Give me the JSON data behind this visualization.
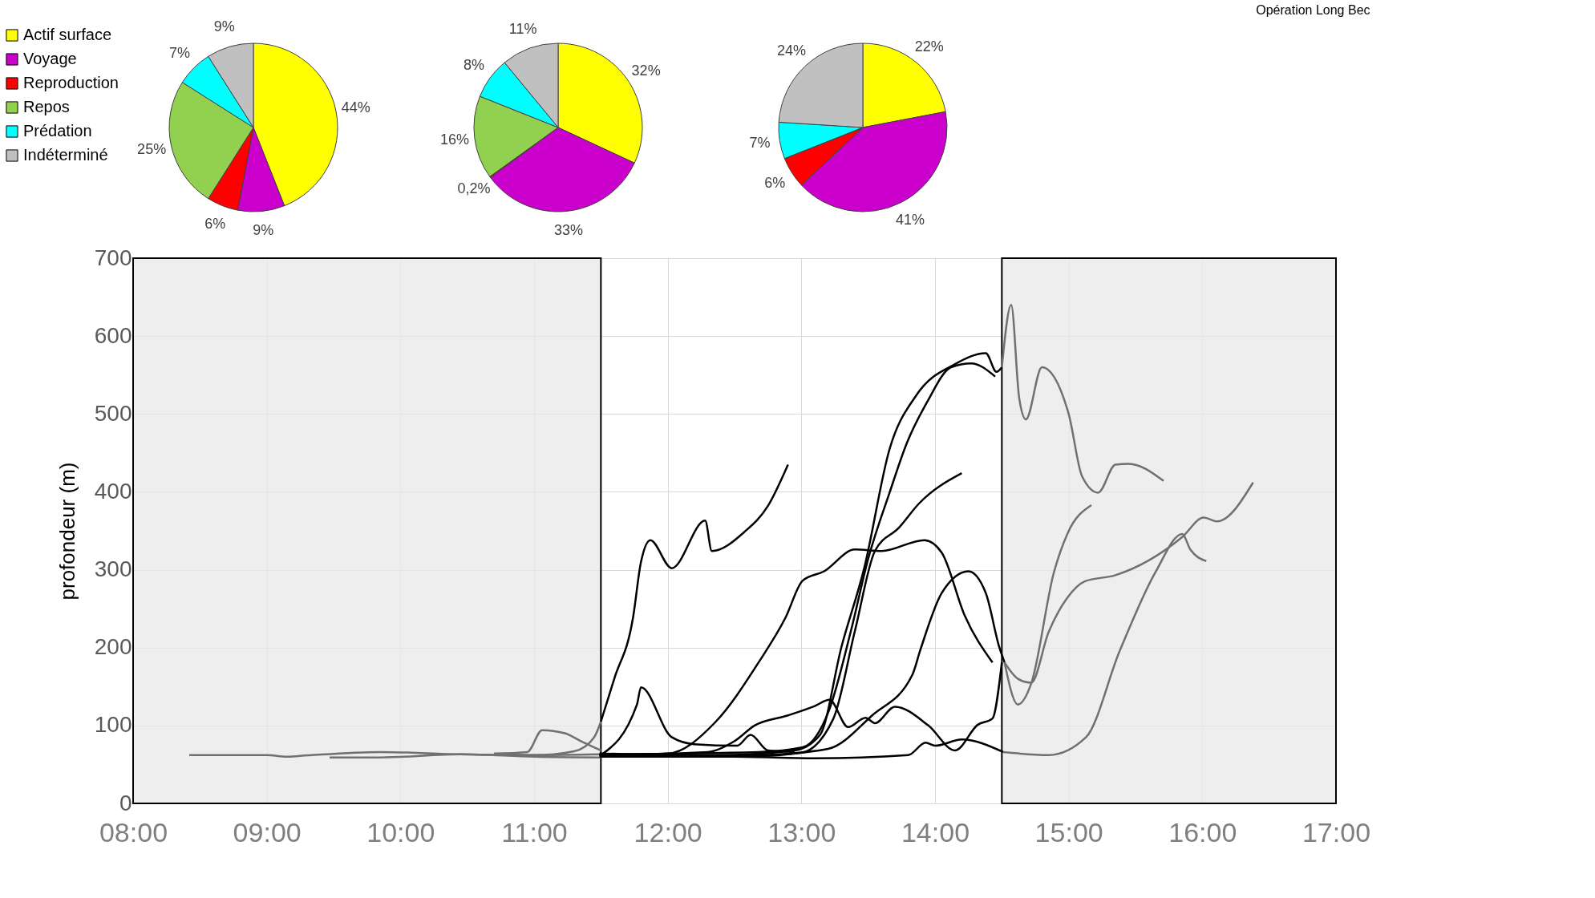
{
  "chart_data": [
    {
      "type": "line",
      "ylabel": "profondeur (m)",
      "xlim": [
        8,
        17
      ],
      "ylim": [
        0,
        700
      ],
      "xticks": [
        {
          "value": 8,
          "label": "08:00"
        },
        {
          "value": 9,
          "label": "09:00"
        },
        {
          "value": 10,
          "label": "10:00"
        },
        {
          "value": 11,
          "label": "11:00"
        },
        {
          "value": 12,
          "label": "12:00"
        },
        {
          "value": 13,
          "label": "13:00"
        },
        {
          "value": 14,
          "label": "14:00"
        },
        {
          "value": 15,
          "label": "15:00"
        },
        {
          "value": 16,
          "label": "16:00"
        },
        {
          "value": 17,
          "label": "17:00"
        }
      ],
      "yticks": [
        0,
        100,
        200,
        300,
        400,
        500,
        600,
        700
      ],
      "grid": true,
      "marker": "none",
      "line_style": "solid",
      "bands": [
        {
          "axis": "x",
          "from": 8,
          "to": 11.5,
          "color": "#e8e8e8"
        },
        {
          "axis": "x",
          "from": 14.5,
          "to": 17,
          "color": "#e8e8e8"
        }
      ],
      "annotations": [
        {
          "text": "Opération Long Bec"
        }
      ],
      "series": [
        {
          "color": "#707070",
          "x": [
            8.42,
            9.0,
            9.15,
            9.25,
            9.85,
            10.45,
            11.0,
            11.5
          ],
          "values": [
            62,
            62,
            60,
            61,
            66,
            63,
            62,
            63
          ]
        },
        {
          "color": "#707070",
          "x": [
            9.47,
            9.85,
            10.45,
            11.0,
            11.5
          ],
          "values": [
            59,
            59,
            63,
            60,
            59
          ]
        },
        {
          "color": "#707070",
          "x": [
            10.7,
            10.95,
            11.06,
            11.23,
            11.35,
            11.5
          ],
          "values": [
            64,
            66,
            94,
            90,
            80,
            68
          ]
        },
        {
          "color": "#707070",
          "x": [
            10.8,
            11.0,
            11.3,
            11.45,
            11.5
          ],
          "values": [
            63,
            62,
            67,
            85,
            105
          ]
        },
        {
          "color": "#000000",
          "x": [
            11.5,
            11.6,
            11.74,
            11.8,
            11.87,
            12.03,
            12.28,
            12.33,
            12.57,
            12.75,
            12.9
          ],
          "values": [
            105,
            160,
            238,
            310,
            338,
            302,
            363,
            324,
            348,
            382,
            435
          ]
        },
        {
          "color": "#000000",
          "x": [
            11.49,
            12.36,
            12.95,
            13.14,
            13.3,
            13.47,
            13.66,
            13.86,
            14.15,
            14.38,
            14.46,
            14.5
          ],
          "values": [
            64,
            62,
            68,
            88,
            201,
            302,
            455,
            524,
            564,
            578,
            554,
            560
          ]
        },
        {
          "color": "#707070",
          "x": [
            14.5,
            14.57,
            14.63,
            14.68,
            14.8,
            15.0,
            15.1,
            15.22,
            15.35,
            15.45,
            15.71
          ],
          "values": [
            560,
            640,
            520,
            493,
            560,
            500,
            420,
            399,
            435,
            436,
            414
          ]
        },
        {
          "color": "#000000",
          "x": [
            11.49,
            12.68,
            13.01,
            13.21,
            13.37,
            13.5,
            13.66,
            13.79,
            13.94,
            14.12,
            14.27,
            14.45
          ],
          "values": [
            63,
            66,
            72,
            121,
            221,
            314,
            399,
            463,
            515,
            560,
            565,
            548
          ]
        },
        {
          "color": "#000000",
          "x": [
            11.49,
            12.68,
            13.0,
            13.24,
            13.4,
            13.55,
            13.73,
            13.88,
            14.2
          ],
          "values": [
            62,
            61,
            65,
            109,
            221,
            324,
            354,
            385,
            424
          ]
        },
        {
          "color": "#000000",
          "x": [
            11.49,
            12.0,
            12.36,
            12.68,
            12.88,
            13.01,
            13.17,
            13.4,
            13.6,
            13.92,
            14.05,
            14.22,
            14.43
          ],
          "values": [
            62,
            64,
            105,
            181,
            238,
            286,
            298,
            326,
            324,
            338,
            322,
            242,
            181
          ]
        },
        {
          "color": "#000000",
          "x": [
            11.49,
            12.68,
            13.2,
            13.53,
            13.83,
            13.89,
            14.05,
            14.25,
            14.38,
            14.48,
            14.52
          ],
          "values": [
            61,
            62,
            70,
            113,
            165,
            197,
            270,
            298,
            270,
            201,
            181
          ]
        },
        {
          "color": "#707070",
          "x": [
            14.52,
            14.62,
            14.72,
            14.89,
            14.99,
            15.17
          ],
          "values": [
            181,
            127,
            154,
            297,
            346,
            383
          ]
        },
        {
          "color": "#707070",
          "x": [
            14.52,
            14.62,
            14.72,
            14.85,
            14.99,
            15.12,
            15.35,
            15.85,
            16.01,
            16.11,
            16.38
          ],
          "values": [
            181,
            160,
            155,
            220,
            264,
            285,
            293,
            342,
            367,
            362,
            412
          ]
        },
        {
          "color": "#000000",
          "x": [
            11.5,
            11.77,
            11.8,
            12.03,
            12.2,
            12.52,
            12.62,
            12.75,
            12.95
          ],
          "values": [
            62,
            127,
            149,
            85,
            76,
            74,
            88,
            68,
            66
          ]
        },
        {
          "color": "#000000",
          "x": [
            11.49,
            12.3,
            12.5,
            12.65,
            12.9,
            13.1,
            13.21,
            13.35,
            13.48,
            13.55,
            13.7,
            13.95,
            14.15,
            14.32,
            14.43,
            14.5
          ],
          "values": [
            62,
            66,
            80,
            100,
            113,
            125,
            133,
            98,
            110,
            103,
            124,
            100,
            68,
            101,
            109,
            181
          ]
        },
        {
          "color": "#000000",
          "x": [
            11.49,
            12.5,
            13.1,
            13.8,
            13.93,
            14.0,
            14.2,
            14.51
          ],
          "values": [
            60,
            60,
            58,
            62,
            78,
            74,
            82,
            66
          ]
        },
        {
          "color": "#707070",
          "x": [
            14.51,
            14.85,
            15.13,
            15.38,
            15.65,
            15.85,
            15.91,
            16.03
          ],
          "values": [
            66,
            62,
            85,
            195,
            297,
            346,
            326,
            311
          ]
        }
      ]
    },
    {
      "type": "pie",
      "legend": "left",
      "categories": [
        "Actif surface",
        "Voyage",
        "Reproduction",
        "Repos",
        "Prédation",
        "Indéterminé"
      ],
      "values": [
        44,
        9,
        6,
        25,
        7,
        9
      ],
      "colors": [
        "#ffff00",
        "#cc00cc",
        "#ff0000",
        "#92d050",
        "#00ffff",
        "#c0c0c0"
      ],
      "value_labels": [
        "44%",
        "9%",
        "6%",
        "25%",
        "7%",
        "9%"
      ]
    },
    {
      "type": "pie",
      "values": [
        32,
        33,
        0.2,
        16,
        8,
        11
      ],
      "colors": [
        "#ffff00",
        "#cc00cc",
        "#ff0000",
        "#92d050",
        "#00ffff",
        "#c0c0c0"
      ],
      "value_labels": [
        "32%",
        "33%",
        "0,2%",
        "16%",
        "8%",
        "11%"
      ]
    },
    {
      "type": "pie",
      "values": [
        22,
        41,
        6,
        0,
        7,
        24
      ],
      "colors": [
        "#ffff00",
        "#cc00cc",
        "#ff0000",
        "#92d050",
        "#00ffff",
        "#c0c0c0"
      ],
      "value_labels": [
        "22%",
        "41%",
        "6%",
        null,
        "7%",
        "24%"
      ]
    }
  ]
}
